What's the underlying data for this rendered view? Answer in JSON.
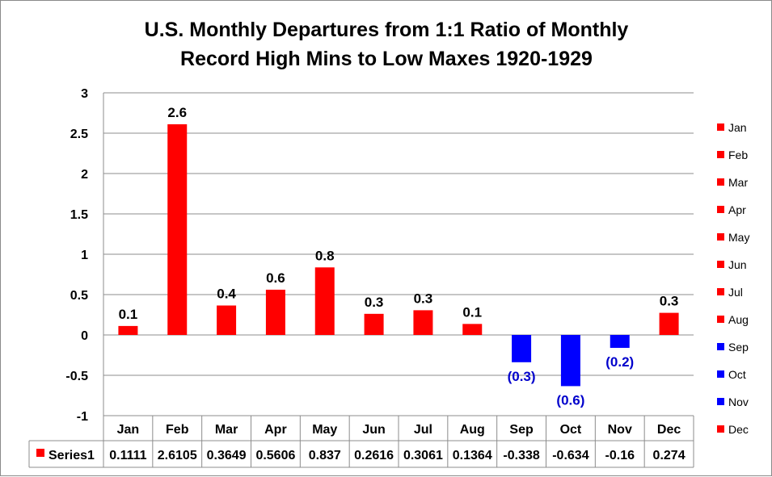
{
  "chart_data": {
    "type": "bar",
    "title_lines": [
      "U.S. Monthly Departures from 1:1 Ratio of Monthly",
      "Record High Mins to Low Maxes 1920-1929"
    ],
    "categories": [
      "Jan",
      "Feb",
      "Mar",
      "Apr",
      "May",
      "Jun",
      "Jul",
      "Aug",
      "Sep",
      "Oct",
      "Nov",
      "Dec"
    ],
    "series": [
      {
        "name": "Series1",
        "values": [
          0.1111,
          2.6105,
          0.3649,
          0.5606,
          0.837,
          0.2616,
          0.3061,
          0.1364,
          -0.338,
          -0.634,
          -0.16,
          0.274
        ],
        "table_values": [
          "0.1111",
          "2.6105",
          "0.3649",
          "0.5606",
          "0.837",
          "0.2616",
          "0.3061",
          "0.1364",
          "-0.338",
          "-0.634",
          "-0.16",
          "0.274"
        ]
      }
    ],
    "data_labels": [
      "0.1",
      "2.6",
      "0.4",
      "0.6",
      "0.8",
      "0.3",
      "0.3",
      "0.1",
      "(0.3)",
      "(0.6)",
      "(0.2)",
      "0.3"
    ],
    "y_ticks": [
      "3",
      "2.5",
      "2",
      "1.5",
      "1",
      "0.5",
      "0",
      "-0.5",
      "-1"
    ],
    "ylim": [
      -1,
      3
    ],
    "ystep": 0.5,
    "grid": true,
    "legend": {
      "position": "right",
      "entries": [
        "Jan",
        "Feb",
        "Mar",
        "Apr",
        "May",
        "Jun",
        "Jul",
        "Aug",
        "Sep",
        "Oct",
        "Nov",
        "Dec"
      ]
    },
    "data_table": true,
    "colors": {
      "positive": "#ff0000",
      "negative": "#0000ff",
      "positive_label": "#000000",
      "negative_label": "#0000cc"
    }
  }
}
